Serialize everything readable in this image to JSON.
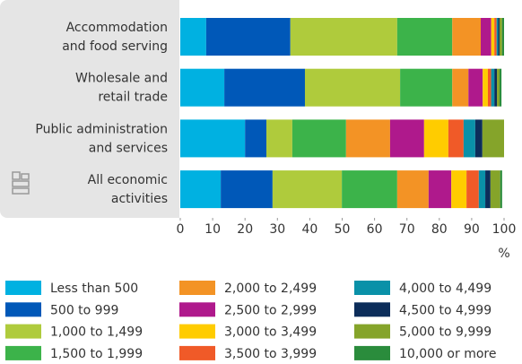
{
  "chart_data": {
    "type": "stacked-barh",
    "categories": [
      [
        "Accommodation",
        "and food serving"
      ],
      [
        "Wholesale and",
        "retail trade"
      ],
      [
        "Public administration",
        "and services"
      ],
      [
        "All economic",
        "activities"
      ]
    ],
    "series": [
      {
        "name": "Less than 500",
        "color": "#00b1e1",
        "values": [
          8,
          13.6,
          20,
          12.5
        ]
      },
      {
        "name": "500 to 999",
        "color": "#0058b8",
        "values": [
          26,
          24.9,
          6.6,
          16
        ]
      },
      {
        "name": "1,000 to 1,499",
        "color": "#afcb3c",
        "values": [
          33,
          29.4,
          8,
          21.4
        ]
      },
      {
        "name": "1,500 to 1,999",
        "color": "#3cb34a",
        "values": [
          17,
          16.1,
          16.6,
          17.1
        ]
      },
      {
        "name": "2,000 to 2,499",
        "color": "#f39325",
        "values": [
          8.8,
          5,
          13.6,
          9.7
        ]
      },
      {
        "name": "2,500 to 2,999",
        "color": "#af198c",
        "values": [
          3.2,
          4.4,
          10.5,
          7
        ]
      },
      {
        "name": "3,000 to 3,499",
        "color": "#ffcc00",
        "values": [
          1,
          1.6,
          7.5,
          4.7
        ]
      },
      {
        "name": "3,500 to 3,999",
        "color": "#f05a28",
        "values": [
          0.7,
          1,
          4.7,
          3.8
        ]
      },
      {
        "name": "4,000 to 4,499",
        "color": "#0a91a8",
        "values": [
          0.5,
          1,
          3.6,
          2
        ]
      },
      {
        "name": "4,500 to 4,999",
        "color": "#0c2d5a",
        "values": [
          0.4,
          0.8,
          2.2,
          1.6
        ]
      },
      {
        "name": "5,000 to 9,999",
        "color": "#85a42a",
        "values": [
          0.8,
          0.8,
          6.7,
          3
        ]
      },
      {
        "name": "10,000 or more",
        "color": "#2a8c3c",
        "values": [
          0.6,
          0.6,
          0,
          0.6
        ]
      }
    ],
    "xlim": [
      0,
      100
    ],
    "xticks": [
      0,
      10,
      20,
      30,
      40,
      50,
      60,
      70,
      80,
      90,
      100
    ],
    "x_unit": "%"
  }
}
